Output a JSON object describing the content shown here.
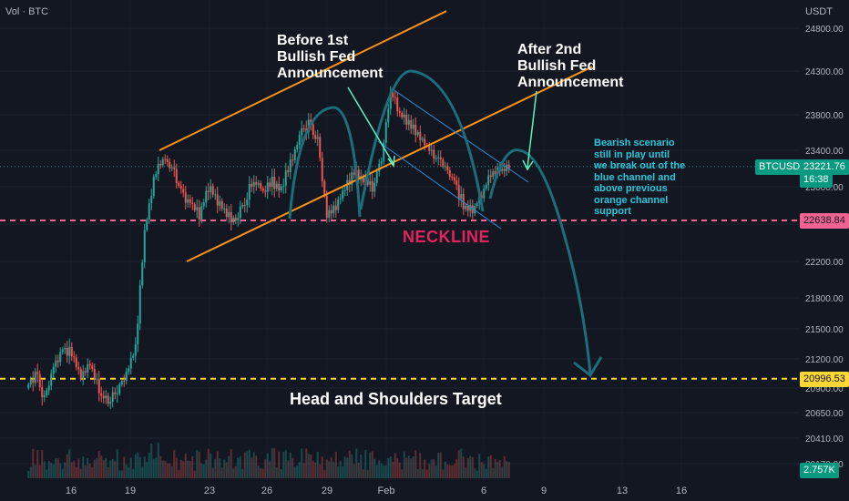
{
  "header": {
    "left_label": "Vol · BTC",
    "price_unit": "USDT"
  },
  "symbol": {
    "name": "BTCUSDT",
    "last_price": "23221.76",
    "countdown": "16:38",
    "volume": "2.757K"
  },
  "levels": {
    "neckline": "22638.84",
    "target": "20996.53"
  },
  "annotations": {
    "before": "Before 1st\nBullish Fed\nAnnouncement",
    "after": "After 2nd\nBullish Fed\nAnnouncement",
    "neckline": "NECKLINE",
    "target": "Head and Shoulders Target",
    "scenario": "Bearish scenario\nstill in play until\nwe break out of the\nblue channel and\nabove previous\norange channel\nsupport"
  },
  "colors": {
    "background": "#131722",
    "bull": "#26a69a",
    "bear": "#ef5350",
    "channel": "#f7931a",
    "pattern": "#1b6e7a",
    "neckline": "#f06292",
    "target": "#fdd835",
    "note": "#26c6da"
  },
  "chart_data": {
    "type": "candlestick",
    "y_axis": {
      "ticks": [
        24800,
        24300,
        23800,
        23400,
        23000,
        22600,
        22200,
        21800,
        21500,
        21200,
        20900,
        20650,
        20410,
        20170
      ]
    },
    "x_axis": {
      "ticks": [
        "16",
        "19",
        "23",
        "26",
        "29",
        "Feb",
        "6",
        "9",
        "13",
        "16"
      ]
    },
    "price_path": [
      [
        0,
        20900
      ],
      [
        1,
        21050
      ],
      [
        2,
        20800
      ],
      [
        3,
        21100
      ],
      [
        4,
        21300
      ],
      [
        5,
        21250
      ],
      [
        6,
        21000
      ],
      [
        7,
        21150
      ],
      [
        8,
        20900
      ],
      [
        9,
        20750
      ],
      [
        10,
        20900
      ],
      [
        11,
        21050
      ],
      [
        12,
        21300
      ],
      [
        13,
        22500
      ],
      [
        14,
        23100
      ],
      [
        15,
        23300
      ],
      [
        16,
        23200
      ],
      [
        17,
        22950
      ],
      [
        18,
        22800
      ],
      [
        19,
        22700
      ],
      [
        20,
        23000
      ],
      [
        21,
        22850
      ],
      [
        22,
        22700
      ],
      [
        23,
        22650
      ],
      [
        24,
        22850
      ],
      [
        25,
        23100
      ],
      [
        26,
        22950
      ],
      [
        27,
        23050
      ],
      [
        28,
        23000
      ],
      [
        29,
        23250
      ],
      [
        30,
        23550
      ],
      [
        31,
        23700
      ],
      [
        32,
        23500
      ],
      [
        33,
        22700
      ],
      [
        34,
        22800
      ],
      [
        35,
        23000
      ],
      [
        36,
        23150
      ],
      [
        37,
        23050
      ],
      [
        38,
        23000
      ],
      [
        39,
        23300
      ],
      [
        40,
        24100
      ],
      [
        41,
        23800
      ],
      [
        42,
        23700
      ],
      [
        43,
        23600
      ],
      [
        44,
        23450
      ],
      [
        45,
        23300
      ],
      [
        46,
        23200
      ],
      [
        47,
        23050
      ],
      [
        48,
        22800
      ],
      [
        49,
        22750
      ],
      [
        50,
        22900
      ],
      [
        51,
        23150
      ],
      [
        52,
        23200
      ],
      [
        53,
        23222
      ]
    ],
    "highlights": {
      "high": 24250,
      "low": 22500
    },
    "orange_channel": {
      "upper": [
        [
          14.5,
          23400
        ],
        [
          46,
          25000
        ]
      ],
      "lower": [
        [
          17.5,
          22200
        ],
        [
          62,
          24350
        ]
      ]
    },
    "blue_channel": {
      "upper": [
        [
          40,
          24100
        ],
        [
          55,
          23050
        ]
      ],
      "lower": [
        [
          38.5,
          23500
        ],
        [
          52,
          22550
        ]
      ]
    },
    "projection": {
      "from": [
        55,
        23300
      ],
      "to": [
        58,
        20996.53
      ]
    }
  }
}
